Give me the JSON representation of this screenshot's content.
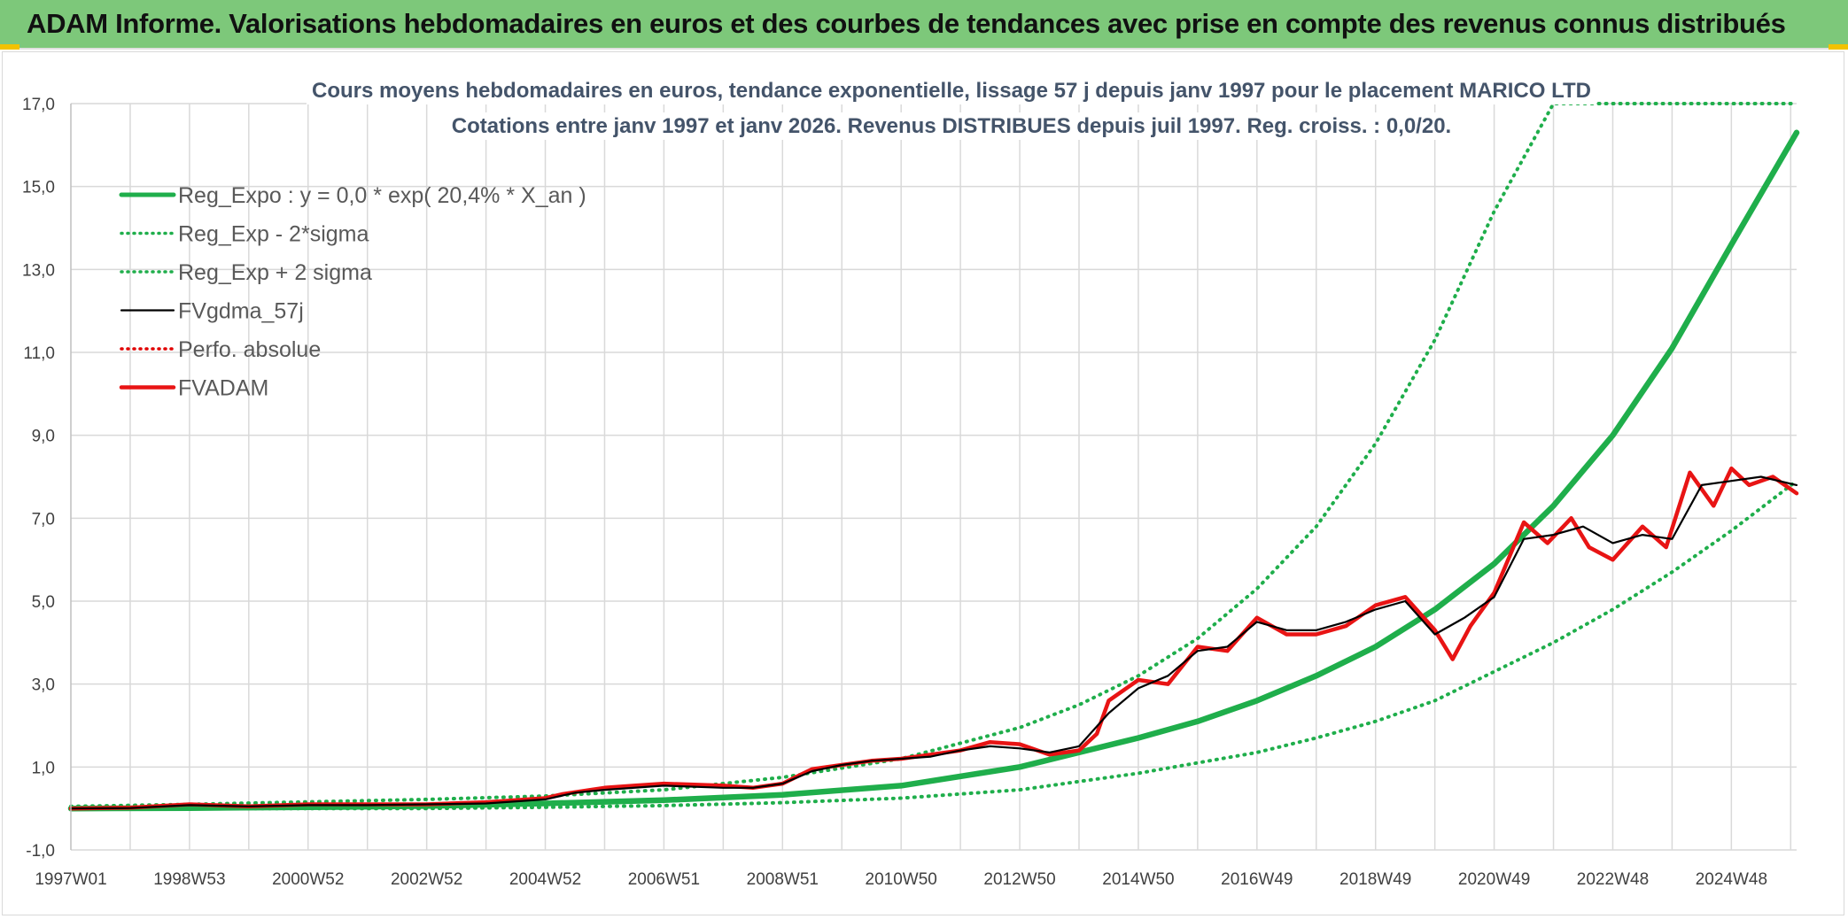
{
  "page": {
    "banner_title": "ADAM Informe. Valorisations hebdomadaires en euros et des courbes de tendances avec prise en compte des revenus connus distribués",
    "banner_color": "#7dc87a",
    "corner_color": "#f2c200"
  },
  "chart_data": {
    "type": "line",
    "title": [
      "Cours moyens hebdomadaires en euros, tendance exponentielle, lissage 57 j depuis janv 1997 pour le placement MARICO LTD",
      "Cotations entre janv 1997 et janv 2026. Revenus DISTRIBUES depuis juil 1997. Reg. croiss. : 0,0/20."
    ],
    "xlabel": "",
    "ylabel": "",
    "ylim": [
      -1.0,
      17.0
    ],
    "xlim": [
      1997.0,
      2026.1
    ],
    "y_ticks": [
      "-1,0",
      "1,0",
      "3,0",
      "5,0",
      "7,0",
      "9,0",
      "11,0",
      "13,0",
      "15,0",
      "17,0"
    ],
    "x_tick_labels": [
      "1997W01",
      "1998W53",
      "2000W52",
      "2002W52",
      "2004W52",
      "2006W51",
      "2008W51",
      "2010W50",
      "2012W50",
      "2014W50",
      "2016W49",
      "2018W49",
      "2020W49",
      "2022W48",
      "2024W48"
    ],
    "grid": true,
    "legend_position": "top-left",
    "series": [
      {
        "name": "Reg_Expo : y = 0,0 * exp( 20,4% *  X_an )",
        "color": "#1fae4b",
        "style": "solid-thick",
        "x": [
          1997.0,
          1999.0,
          2001.0,
          2003.0,
          2005.0,
          2007.0,
          2009.0,
          2011.0,
          2013.0,
          2014.0,
          2015.0,
          2016.0,
          2017.0,
          2018.0,
          2019.0,
          2020.0,
          2021.0,
          2022.0,
          2023.0,
          2024.0,
          2025.0,
          2026.1
        ],
        "values": [
          0.0,
          0.01,
          0.03,
          0.06,
          0.12,
          0.2,
          0.33,
          0.55,
          1.0,
          1.35,
          1.7,
          2.1,
          2.6,
          3.2,
          3.9,
          4.8,
          5.9,
          7.3,
          9.0,
          11.1,
          13.6,
          16.3
        ]
      },
      {
        "name": "Reg_Exp - 2*sigma",
        "color": "#1fae4b",
        "style": "dotted",
        "x": [
          1997.0,
          1999.0,
          2001.0,
          2003.0,
          2005.0,
          2007.0,
          2009.0,
          2011.0,
          2013.0,
          2014.0,
          2015.0,
          2016.0,
          2017.0,
          2018.0,
          2019.0,
          2020.0,
          2021.0,
          2022.0,
          2023.0,
          2024.0,
          2025.0,
          2026.1
        ],
        "values": [
          0.0,
          0.0,
          0.0,
          0.0,
          0.03,
          0.07,
          0.14,
          0.25,
          0.45,
          0.65,
          0.85,
          1.1,
          1.35,
          1.7,
          2.1,
          2.6,
          3.3,
          4.0,
          4.8,
          5.7,
          6.7,
          7.9
        ]
      },
      {
        "name": "Reg_Exp + 2 sigma",
        "color": "#1fae4b",
        "style": "dotted",
        "x": [
          1997.0,
          1999.0,
          2001.0,
          2003.0,
          2005.0,
          2007.0,
          2009.0,
          2011.0,
          2013.0,
          2014.0,
          2015.0,
          2016.0,
          2017.0,
          2018.0,
          2019.0,
          2020.0,
          2021.0,
          2022.0,
          2023.0,
          2024.0,
          2025.0,
          2026.1
        ],
        "values": [
          0.05,
          0.1,
          0.16,
          0.22,
          0.3,
          0.45,
          0.75,
          1.2,
          1.95,
          2.5,
          3.2,
          4.1,
          5.3,
          6.8,
          8.8,
          11.3,
          14.4,
          17.0,
          17.0,
          17.0,
          17.0,
          17.0
        ]
      },
      {
        "name": "FVgdma_57j",
        "color": "#000000",
        "style": "solid-thin",
        "x": [
          1997.0,
          1998.0,
          1999.0,
          2000.0,
          2001.0,
          2002.0,
          2003.0,
          2004.0,
          2005.0,
          2005.5,
          2006.0,
          2007.0,
          2008.0,
          2008.5,
          2009.0,
          2009.5,
          2010.0,
          2010.5,
          2011.0,
          2011.5,
          2012.0,
          2012.5,
          2013.0,
          2013.5,
          2014.0,
          2014.5,
          2015.0,
          2015.5,
          2016.0,
          2016.5,
          2017.0,
          2017.5,
          2018.0,
          2018.5,
          2019.0,
          2019.5,
          2020.0,
          2020.5,
          2021.0,
          2021.5,
          2022.0,
          2022.5,
          2023.0,
          2023.5,
          2024.0,
          2024.5,
          2025.0,
          2025.5,
          2026.1
        ],
        "values": [
          0.0,
          0.01,
          0.08,
          0.05,
          0.08,
          0.08,
          0.1,
          0.12,
          0.22,
          0.38,
          0.45,
          0.55,
          0.5,
          0.5,
          0.6,
          0.9,
          1.05,
          1.15,
          1.2,
          1.25,
          1.4,
          1.5,
          1.45,
          1.35,
          1.5,
          2.3,
          2.9,
          3.2,
          3.8,
          3.9,
          4.5,
          4.3,
          4.3,
          4.5,
          4.8,
          5.0,
          4.2,
          4.6,
          5.1,
          6.5,
          6.6,
          6.8,
          6.4,
          6.6,
          6.5,
          7.8,
          7.9,
          8.0,
          7.8
        ]
      },
      {
        "name": "Perfo. absolue",
        "color": "#e00000",
        "style": "dotted",
        "x": [],
        "values": []
      },
      {
        "name": "FVADAM",
        "color": "#e81414",
        "style": "solid-thick",
        "x": [
          1997.0,
          1998.0,
          1999.0,
          2000.0,
          2001.0,
          2002.0,
          2003.0,
          2004.0,
          2005.0,
          2005.3,
          2006.0,
          2006.5,
          2007.0,
          2008.0,
          2008.5,
          2009.0,
          2009.5,
          2010.0,
          2010.5,
          2011.0,
          2011.5,
          2012.0,
          2012.5,
          2013.0,
          2013.5,
          2014.0,
          2014.3,
          2014.5,
          2015.0,
          2015.5,
          2016.0,
          2016.5,
          2017.0,
          2017.5,
          2018.0,
          2018.5,
          2019.0,
          2019.5,
          2020.0,
          2020.3,
          2020.6,
          2021.0,
          2021.5,
          2021.9,
          2022.3,
          2022.6,
          2023.0,
          2023.5,
          2023.9,
          2024.3,
          2024.7,
          2025.0,
          2025.3,
          2025.7,
          2026.1
        ],
        "values": [
          0.0,
          0.02,
          0.1,
          0.05,
          0.1,
          0.1,
          0.1,
          0.15,
          0.25,
          0.35,
          0.5,
          0.55,
          0.6,
          0.55,
          0.5,
          0.6,
          0.95,
          1.05,
          1.15,
          1.2,
          1.3,
          1.4,
          1.6,
          1.55,
          1.3,
          1.4,
          1.8,
          2.6,
          3.1,
          3.0,
          3.9,
          3.8,
          4.6,
          4.2,
          4.2,
          4.4,
          4.9,
          5.1,
          4.3,
          3.6,
          4.4,
          5.2,
          6.9,
          6.4,
          7.0,
          6.3,
          6.0,
          6.8,
          6.3,
          8.1,
          7.3,
          8.2,
          7.8,
          8.0,
          7.6
        ]
      }
    ]
  }
}
